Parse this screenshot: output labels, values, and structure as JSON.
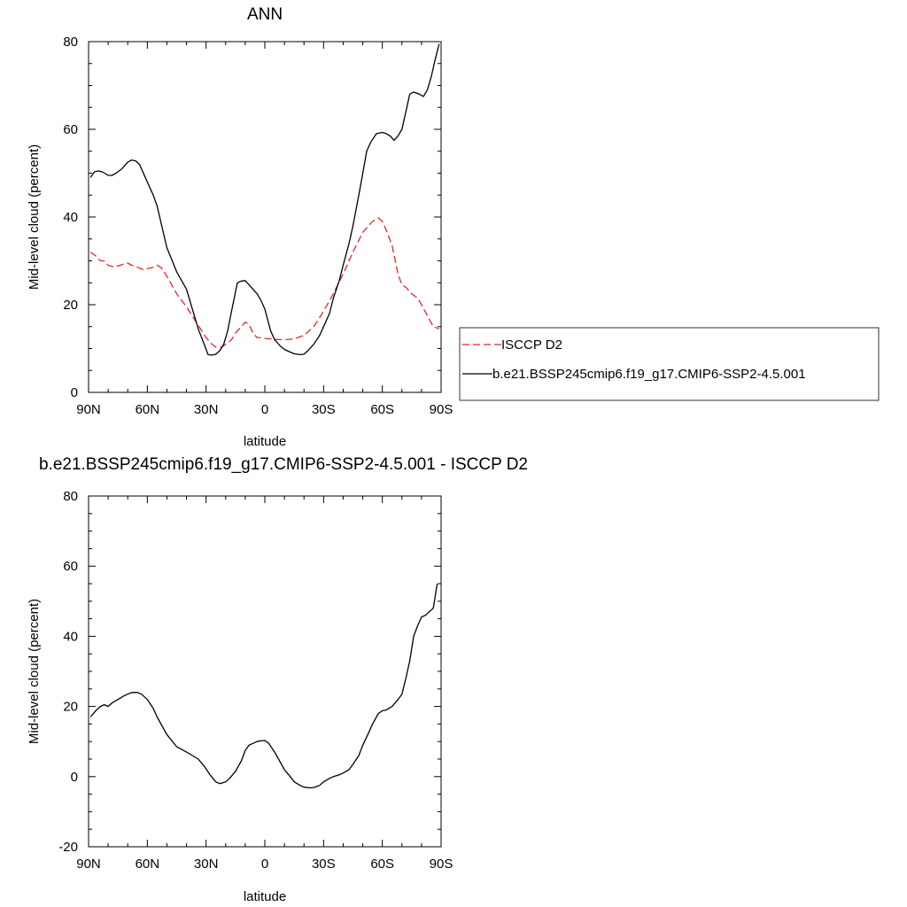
{
  "chart_data": [
    {
      "type": "line",
      "title": "ANN",
      "xlabel": "latitude",
      "ylabel": "Mid-level cloud (percent)",
      "ylim": [
        0,
        80
      ],
      "yticks": [
        0,
        20,
        40,
        60,
        80
      ],
      "xlim": [
        90,
        -90
      ],
      "xticks": [
        90,
        60,
        30,
        0,
        -30,
        -60,
        -90
      ],
      "xtick_labels": [
        "90N",
        "60N",
        "30N",
        "0",
        "30S",
        "60S",
        "90S"
      ],
      "grid": false,
      "legend": {
        "placement": "right",
        "entries": [
          "ISCCP D2",
          "b.e21.BSSP245cmip6.f19_g17.CMIP6-SSP2-4.5.001"
        ]
      },
      "series": [
        {
          "name": "ISCCP D2",
          "style": "dashed",
          "color": "#e8222a",
          "x": [
            89,
            86,
            84,
            82,
            80,
            78,
            75,
            72,
            70,
            68,
            65,
            62,
            60,
            57,
            55,
            53,
            50,
            45,
            40,
            35,
            30,
            27,
            25,
            22,
            20,
            17,
            15,
            12,
            10,
            8,
            6,
            4,
            2,
            0,
            -5,
            -10,
            -15,
            -20,
            -25,
            -30,
            -35,
            -40,
            -45,
            -50,
            -55,
            -58,
            -60,
            -62,
            -65,
            -68,
            -70,
            -72,
            -75,
            -78,
            -80,
            -83,
            -86,
            -89
          ],
          "y": [
            32,
            31,
            30,
            30,
            29,
            28.7,
            28.8,
            29.3,
            29.5,
            29,
            28.5,
            28,
            28.2,
            28.5,
            29,
            28.5,
            26.5,
            22.5,
            19.5,
            16,
            12.5,
            11,
            10.3,
            10.3,
            11,
            12,
            13.5,
            15,
            16,
            15.5,
            13.5,
            12.5,
            12.5,
            12.3,
            12.1,
            12,
            12.2,
            13,
            15,
            18.5,
            22.5,
            27,
            32,
            36.5,
            39,
            39.8,
            39,
            37,
            33.5,
            27,
            24.5,
            24,
            22.5,
            21.5,
            20,
            17.5,
            15,
            14.5
          ]
        },
        {
          "name": "b.e21.BSSP245cmip6.f19_g17.CMIP6-SSP2-4.5.001",
          "style": "solid",
          "color": "#000000",
          "x": [
            89,
            87,
            85,
            83,
            80,
            78,
            76,
            73,
            70,
            68,
            66,
            64,
            62,
            60,
            57,
            55,
            50,
            45,
            40,
            37,
            34,
            31,
            29,
            27,
            25,
            23,
            21,
            19,
            17,
            14,
            12,
            10,
            8,
            6,
            4,
            2,
            0,
            -3,
            -5,
            -8,
            -10,
            -13,
            -15,
            -18,
            -20,
            -22,
            -25,
            -28,
            -30,
            -33,
            -35,
            -38,
            -40,
            -43,
            -45,
            -48,
            -50,
            -52,
            -54,
            -57,
            -60,
            -62,
            -64,
            -66,
            -68,
            -70,
            -72,
            -74,
            -76,
            -79,
            -81,
            -83,
            -85,
            -87,
            -89
          ],
          "y": [
            49,
            50.3,
            50.5,
            50.3,
            49.5,
            49.5,
            50,
            51,
            52.5,
            53,
            52.8,
            52,
            50,
            48,
            45,
            42.5,
            33,
            27.5,
            23.5,
            19,
            14.5,
            11,
            8.6,
            8.5,
            8.7,
            9.5,
            11,
            14,
            18.5,
            25,
            25.4,
            25.5,
            24.5,
            23.5,
            22.5,
            21,
            19,
            14,
            12,
            10.5,
            9.8,
            9.2,
            8.8,
            8.6,
            8.7,
            9.5,
            11,
            13,
            15,
            18,
            21.5,
            25.5,
            29,
            34,
            38,
            45,
            50,
            55,
            57,
            59,
            59.3,
            59,
            58.5,
            57.5,
            58.5,
            60,
            64,
            68,
            68.5,
            68,
            67.5,
            69,
            72,
            76,
            79.5
          ]
        }
      ]
    },
    {
      "type": "line",
      "title": "b.e21.BSSP245cmip6.f19_g17.CMIP6-SSP2-4.5.001 - ISCCP D2",
      "xlabel": "latitude",
      "ylabel": "Mid-level cloud (percent)",
      "ylim": [
        -20,
        80
      ],
      "yticks": [
        -20,
        0,
        20,
        40,
        60,
        80
      ],
      "xlim": [
        90,
        -90
      ],
      "xticks": [
        90,
        60,
        30,
        0,
        -30,
        -60,
        -90
      ],
      "xtick_labels": [
        "90N",
        "60N",
        "30N",
        "0",
        "30S",
        "60S",
        "90S"
      ],
      "grid": false,
      "series": [
        {
          "style": "solid",
          "color": "#000000",
          "x": [
            89,
            86,
            84,
            82,
            80,
            78,
            75,
            72,
            70,
            68,
            65,
            63,
            60,
            57,
            55,
            50,
            45,
            40,
            37,
            34,
            31,
            28,
            25,
            23,
            20,
            18,
            15,
            12,
            10,
            8,
            6,
            4,
            2,
            0,
            -2,
            -5,
            -8,
            -10,
            -13,
            -15,
            -18,
            -20,
            -23,
            -25,
            -28,
            -30,
            -33,
            -35,
            -38,
            -40,
            -43,
            -45,
            -48,
            -50,
            -53,
            -55,
            -58,
            -60,
            -62,
            -65,
            -68,
            -70,
            -72,
            -74,
            -76,
            -78,
            -80,
            -82,
            -84,
            -86,
            -88
          ],
          "y": [
            17,
            19,
            20,
            20.5,
            20,
            21,
            22,
            23,
            23.5,
            24,
            24,
            23.5,
            22,
            19.5,
            17,
            12,
            8.5,
            7,
            6,
            5,
            3,
            0.5,
            -1.5,
            -2,
            -1.5,
            -0.5,
            1.5,
            4.5,
            7.5,
            9,
            9.5,
            10,
            10.2,
            10.3,
            9.5,
            7,
            4,
            2,
            0,
            -1.5,
            -2.5,
            -3,
            -3.2,
            -3.1,
            -2.5,
            -1.5,
            -0.5,
            0,
            0.5,
            1,
            2,
            3.5,
            6,
            9,
            12.5,
            15,
            18,
            18.8,
            19,
            20,
            22,
            23.5,
            28,
            33,
            40,
            43,
            45.5,
            46,
            47,
            48,
            55
          ]
        }
      ]
    }
  ]
}
